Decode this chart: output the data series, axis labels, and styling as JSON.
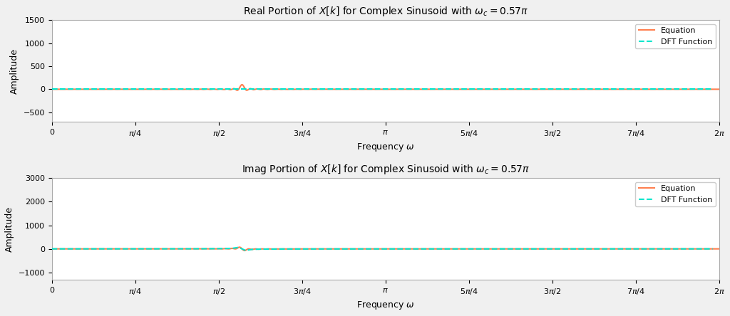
{
  "omega_c": 0.57,
  "N": 100,
  "N_dense": 2000,
  "title_real": "Real Portion of $X[k]$ for Complex Sinusoid with $\\omega_c = 0.57\\pi$",
  "title_imag": "Imag Portion of $X[k]$ for Complex Sinusoid with $\\omega_c = 0.57\\pi$",
  "xlabel": "Frequency $\\omega$",
  "ylabel": "Amplitude",
  "equation_color": "#FF7F4F",
  "dft_color": "#00E5CC",
  "equation_label": "Equation",
  "dft_label": "DFT Function",
  "background_color": "#f0f0f0",
  "axes_bg_color": "#ffffff",
  "grid_color": "#ffffff",
  "figsize": [
    10.24,
    4.44
  ],
  "dpi": 100,
  "ylim_real": [
    -700,
    1500
  ],
  "ylim_imag": [
    -1300,
    3000
  ],
  "yticks_real": [
    -500,
    0,
    500,
    1000,
    1500
  ],
  "yticks_imag": [
    -1000,
    0,
    1000,
    2000,
    3000
  ]
}
